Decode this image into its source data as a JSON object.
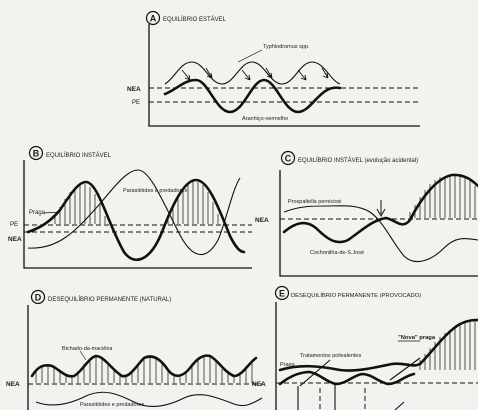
{
  "panels": {
    "A": {
      "letter": "A",
      "title": "EQUILÍBRIO ESTÁVEL",
      "label_nea": "NEA",
      "label_pe": "PE",
      "predator": "Typhlodromus spp.",
      "pest": "Aranhiço-vermelho"
    },
    "B": {
      "letter": "B",
      "title": "EQUILÍBRIO INSTÁVEL",
      "label_pe": "PE",
      "label_nea": "NEA",
      "pest": "Praga",
      "predator": "Parasitóides e predadores"
    },
    "C": {
      "letter": "C",
      "title": "EQUILÍBRIO INSTÁVEL (evolução acidental)",
      "label_nea": "NEA",
      "predator": "Prospaltella perniciosi",
      "pest": "Cochonilha-de-S.José"
    },
    "D": {
      "letter": "D",
      "title": "DESEQUILÍBRIO PERMANENTE (NATURAL)",
      "label_nea": "NEA",
      "pest": "Bichado-da-maciêira",
      "predator": "Parasitóides e predadores"
    },
    "E": {
      "letter": "E",
      "title": "DESEQUILÍBRIO PERMANENTE (PROVOCADO)",
      "label_nea": "NEA",
      "pest": "Praga",
      "treatment": "Tratamentos polivalentes",
      "new_pest": "\"Nova\" praga"
    }
  }
}
